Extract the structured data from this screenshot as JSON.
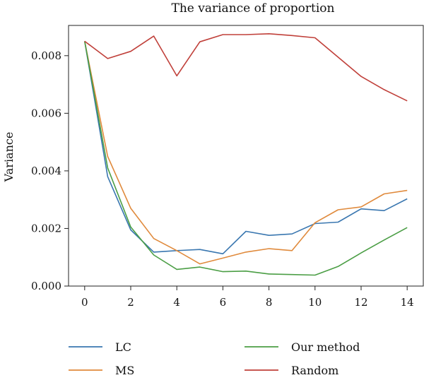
{
  "chart_data": {
    "type": "line",
    "title": "The variance of proportion",
    "xlabel": "",
    "ylabel": "Variance",
    "xlim": [
      -0.7,
      14.7
    ],
    "ylim": [
      0.0,
      0.00905
    ],
    "xticks": [
      0,
      2,
      4,
      6,
      8,
      10,
      12,
      14
    ],
    "yticks": [
      0.0,
      0.002,
      0.004,
      0.006,
      0.008
    ],
    "ytick_labels": [
      "0.000",
      "0.002",
      "0.004",
      "0.006",
      "0.008"
    ],
    "grid": false,
    "legend_position": "bottom",
    "x": [
      0,
      1,
      2,
      3,
      4,
      5,
      6,
      7,
      8,
      9,
      10,
      11,
      12,
      13,
      14
    ],
    "series": [
      {
        "name": "LC",
        "color": "#3a77b0",
        "values": [
          0.0085,
          0.0038,
          0.00195,
          0.00118,
          0.00123,
          0.00127,
          0.00112,
          0.0019,
          0.00176,
          0.00181,
          0.00217,
          0.00222,
          0.00268,
          0.00262,
          0.00303
        ]
      },
      {
        "name": "MS",
        "color": "#e08a3c",
        "values": [
          0.0085,
          0.0045,
          0.0027,
          0.00165,
          0.00123,
          0.00077,
          0.00097,
          0.00118,
          0.0013,
          0.00123,
          0.0022,
          0.00265,
          0.00275,
          0.0032,
          0.00332
        ]
      },
      {
        "name": "Our method",
        "color": "#4b9e45",
        "values": [
          0.0085,
          0.0041,
          0.00205,
          0.00108,
          0.00058,
          0.00066,
          0.0005,
          0.00052,
          0.00042,
          0.0004,
          0.00038,
          0.00068,
          0.00115,
          0.0016,
          0.00203
        ]
      },
      {
        "name": "Random",
        "color": "#c0403a",
        "values": [
          0.0085,
          0.0079,
          0.00815,
          0.00868,
          0.0073,
          0.00848,
          0.00873,
          0.00873,
          0.00876,
          0.0087,
          0.00862,
          0.00795,
          0.00728,
          0.00682,
          0.00643
        ]
      }
    ]
  }
}
